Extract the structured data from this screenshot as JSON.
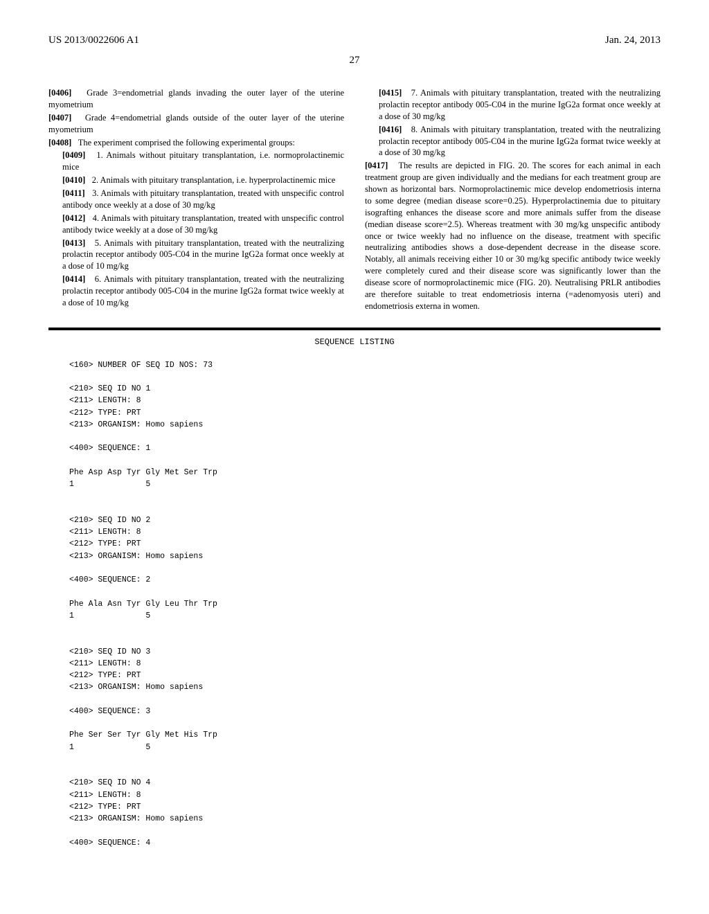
{
  "header": {
    "left": "US 2013/0022606 A1",
    "right": "Jan. 24, 2013"
  },
  "page_number": "27",
  "left_column": {
    "paragraphs": [
      {
        "num": "[0406]",
        "indent": 0,
        "text": "Grade 3=endometrial glands invading the outer layer of the uterine myometrium"
      },
      {
        "num": "[0407]",
        "indent": 0,
        "text": "Grade 4=endometrial glands outside of the outer layer of the uterine myometrium"
      },
      {
        "num": "[0408]",
        "indent": 0,
        "text": "The experiment comprised the following experimental groups:"
      },
      {
        "num": "[0409]",
        "indent": 1,
        "text": "1. Animals without pituitary transplantation, i.e. normoprolactinemic mice"
      },
      {
        "num": "[0410]",
        "indent": 1,
        "text": "2. Animals with pituitary transplantation, i.e. hyperprolactinemic mice"
      },
      {
        "num": "[0411]",
        "indent": 1,
        "text": "3. Animals with pituitary transplantation, treated with unspecific control antibody once weekly at a dose of 30 mg/kg"
      },
      {
        "num": "[0412]",
        "indent": 1,
        "text": "4. Animals with pituitary transplantation, treated with unspecific control antibody twice weekly at a dose of 30 mg/kg"
      },
      {
        "num": "[0413]",
        "indent": 1,
        "text": "5. Animals with pituitary transplantation, treated with the neutralizing prolactin receptor antibody 005-C04 in the murine IgG2a format once weekly at a dose of 10 mg/kg"
      },
      {
        "num": "[0414]",
        "indent": 1,
        "text": "6. Animals with pituitary transplantation, treated with the neutralizing prolactin receptor antibody 005-C04 in the murine IgG2a format twice weekly at a dose of 10 mg/kg"
      }
    ]
  },
  "right_column": {
    "paragraphs": [
      {
        "num": "[0415]",
        "indent": 1,
        "text": "7. Animals with pituitary transplantation, treated with the neutralizing prolactin receptor antibody 005-C04 in the murine IgG2a format once weekly at a dose of 30 mg/kg"
      },
      {
        "num": "[0416]",
        "indent": 1,
        "text": "8. Animals with pituitary transplantation, treated with the neutralizing prolactin receptor antibody 005-C04 in the murine IgG2a format twice weekly at a dose of 30 mg/kg"
      },
      {
        "num": "[0417]",
        "indent": 0,
        "text": "The results are depicted in FIG. 20. The scores for each animal in each treatment group are given individually and the medians for each treatment group are shown as horizontal bars. Normoprolactinemic mice develop endometriosis interna to some degree (median disease score=0.25). Hyperprolactinemia due to pituitary isografting enhances the disease score and more animals suffer from the disease (median disease score=2.5). Whereas treatment with 30 mg/kg unspecific antibody once or twice weekly had no influence on the disease, treatment with specific neutralizing antibodies shows a dose-dependent decrease in the disease score. Notably, all animals receiving either 10 or 30 mg/kg specific antibody twice weekly were completely cured and their disease score was significantly lower than the disease score of normoprolactinemic mice (FIG. 20). Neutralising PRLR antibodies are therefore suitable to treat endometriosis interna (=adenomyosis uteri) and endometriosis externa in women."
      }
    ]
  },
  "sequence_section": {
    "title": "SEQUENCE LISTING",
    "content": "<160> NUMBER OF SEQ ID NOS: 73\n\n<210> SEQ ID NO 1\n<211> LENGTH: 8\n<212> TYPE: PRT\n<213> ORGANISM: Homo sapiens\n\n<400> SEQUENCE: 1\n\nPhe Asp Asp Tyr Gly Met Ser Trp\n1               5\n\n\n<210> SEQ ID NO 2\n<211> LENGTH: 8\n<212> TYPE: PRT\n<213> ORGANISM: Homo sapiens\n\n<400> SEQUENCE: 2\n\nPhe Ala Asn Tyr Gly Leu Thr Trp\n1               5\n\n\n<210> SEQ ID NO 3\n<211> LENGTH: 8\n<212> TYPE: PRT\n<213> ORGANISM: Homo sapiens\n\n<400> SEQUENCE: 3\n\nPhe Ser Ser Tyr Gly Met His Trp\n1               5\n\n\n<210> SEQ ID NO 4\n<211> LENGTH: 8\n<212> TYPE: PRT\n<213> ORGANISM: Homo sapiens\n\n<400> SEQUENCE: 4"
  }
}
